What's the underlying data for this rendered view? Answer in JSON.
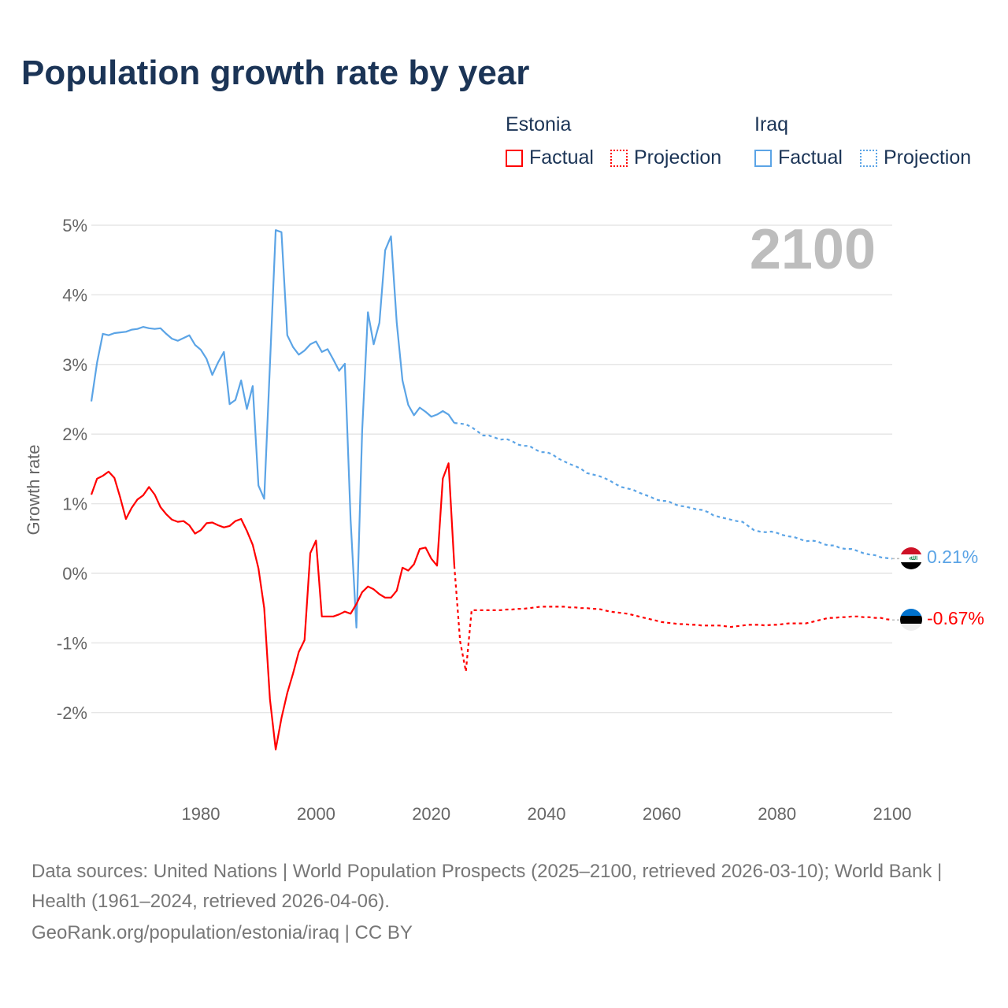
{
  "title": "Population growth rate by year",
  "current_year": "2100",
  "legend": {
    "estonia": {
      "name": "Estonia",
      "factual": "Factual",
      "projection": "Projection"
    },
    "iraq": {
      "name": "Iraq",
      "factual": "Factual",
      "projection": "Projection"
    }
  },
  "end_labels": {
    "iraq": "0.21%",
    "estonia": "-0.67%"
  },
  "footer": {
    "sources": "Data sources: United Nations | World Population Prospects (2025–2100, retrieved 2026-03-10); World Bank | Health (1961–2024, retrieved 2026-04-06).",
    "credit": "GeoRank.org/population/estonia/iraq | CC BY"
  },
  "colors": {
    "estonia": "#ff0000",
    "iraq": "#5ba4e6",
    "title": "#1b3456"
  },
  "chart_data": {
    "type": "line",
    "title": "Population growth rate by year",
    "xlabel": "",
    "ylabel": "Growth rate",
    "xlim": [
      1961,
      2100
    ],
    "ylim": [
      -2.8,
      5
    ],
    "y_ticks": [
      {
        "v": 5,
        "label": "5%"
      },
      {
        "v": 4,
        "label": "4%"
      },
      {
        "v": 3,
        "label": "3%"
      },
      {
        "v": 2,
        "label": "2%"
      },
      {
        "v": 1,
        "label": "1%"
      },
      {
        "v": 0,
        "label": "0%"
      },
      {
        "v": -1,
        "label": "-1%"
      },
      {
        "v": -2,
        "label": "-2%"
      }
    ],
    "x_ticks": [
      {
        "v": 1980,
        "label": "1980"
      },
      {
        "v": 2000,
        "label": "2000"
      },
      {
        "v": 2020,
        "label": "2020"
      },
      {
        "v": 2040,
        "label": "2040"
      },
      {
        "v": 2060,
        "label": "2060"
      },
      {
        "v": 2080,
        "label": "2080"
      },
      {
        "v": 2100,
        "label": "2100"
      }
    ],
    "grid": true,
    "legend_position": "top-right",
    "series": [
      {
        "name": "Iraq",
        "key": "iraq",
        "factual_start": 1961,
        "factual": [
          2.47,
          3.03,
          3.44,
          3.42,
          3.45,
          3.46,
          3.47,
          3.5,
          3.51,
          3.54,
          3.52,
          3.51,
          3.52,
          3.44,
          3.37,
          3.34,
          3.38,
          3.42,
          3.28,
          3.21,
          3.08,
          2.85,
          3.03,
          3.18,
          2.43,
          2.49,
          2.77,
          2.36,
          2.69,
          1.26,
          1.07,
          3.0,
          4.93,
          4.9,
          3.42,
          3.25,
          3.14,
          3.2,
          3.29,
          3.33,
          3.18,
          3.22,
          3.07,
          2.91,
          3.01,
          0.77,
          -0.78,
          2.05,
          3.75,
          3.29,
          3.6,
          4.64,
          4.84,
          3.6,
          2.77,
          2.42,
          2.27,
          2.38,
          2.32,
          2.25,
          2.28,
          2.33,
          2.28,
          2.16
        ],
        "projection_start": 2025,
        "projection": [
          2.15,
          2.14,
          2.1,
          2.04,
          1.98,
          1.98,
          1.95,
          1.92,
          1.93,
          1.9,
          1.85,
          1.83,
          1.83,
          1.78,
          1.74,
          1.74,
          1.71,
          1.65,
          1.61,
          1.57,
          1.54,
          1.5,
          1.44,
          1.42,
          1.4,
          1.37,
          1.33,
          1.28,
          1.24,
          1.22,
          1.2,
          1.16,
          1.13,
          1.1,
          1.06,
          1.04,
          1.04,
          1.0,
          0.97,
          0.96,
          0.94,
          0.92,
          0.91,
          0.88,
          0.83,
          0.81,
          0.79,
          0.77,
          0.75,
          0.74,
          0.68,
          0.62,
          0.6,
          0.59,
          0.6,
          0.58,
          0.55,
          0.53,
          0.52,
          0.49,
          0.46,
          0.47,
          0.46,
          0.42,
          0.4,
          0.4,
          0.36,
          0.35,
          0.35,
          0.32,
          0.29,
          0.27,
          0.26,
          0.23,
          0.22,
          0.21
        ]
      },
      {
        "name": "Estonia",
        "key": "estonia",
        "factual_start": 1961,
        "factual": [
          1.13,
          1.36,
          1.4,
          1.46,
          1.37,
          1.09,
          0.78,
          0.94,
          1.06,
          1.12,
          1.24,
          1.13,
          0.95,
          0.85,
          0.77,
          0.74,
          0.75,
          0.69,
          0.57,
          0.62,
          0.72,
          0.73,
          0.69,
          0.66,
          0.68,
          0.75,
          0.78,
          0.61,
          0.41,
          0.07,
          -0.5,
          -1.81,
          -2.53,
          -2.08,
          -1.72,
          -1.44,
          -1.13,
          -0.96,
          0.29,
          0.47,
          -0.62,
          -0.62,
          -0.62,
          -0.59,
          -0.55,
          -0.58,
          -0.44,
          -0.27,
          -0.19,
          -0.23,
          -0.3,
          -0.35,
          -0.35,
          -0.25,
          0.08,
          0.04,
          0.13,
          0.35,
          0.37,
          0.21,
          0.11,
          1.36,
          1.58,
          0.11
        ],
        "projection_start": 2025,
        "projection": [
          -0.98,
          -1.41,
          -0.53,
          -0.53,
          -0.53,
          -0.53,
          -0.53,
          -0.53,
          -0.52,
          -0.52,
          -0.51,
          -0.51,
          -0.5,
          -0.49,
          -0.48,
          -0.48,
          -0.48,
          -0.48,
          -0.48,
          -0.49,
          -0.49,
          -0.5,
          -0.5,
          -0.51,
          -0.51,
          -0.53,
          -0.55,
          -0.56,
          -0.57,
          -0.58,
          -0.6,
          -0.62,
          -0.64,
          -0.66,
          -0.68,
          -0.7,
          -0.71,
          -0.72,
          -0.73,
          -0.73,
          -0.74,
          -0.74,
          -0.75,
          -0.75,
          -0.75,
          -0.75,
          -0.76,
          -0.77,
          -0.76,
          -0.75,
          -0.74,
          -0.74,
          -0.74,
          -0.75,
          -0.74,
          -0.74,
          -0.73,
          -0.72,
          -0.72,
          -0.72,
          -0.72,
          -0.7,
          -0.68,
          -0.66,
          -0.64,
          -0.64,
          -0.63,
          -0.63,
          -0.62,
          -0.62,
          -0.63,
          -0.63,
          -0.64,
          -0.64,
          -0.66,
          -0.67
        ]
      }
    ]
  }
}
